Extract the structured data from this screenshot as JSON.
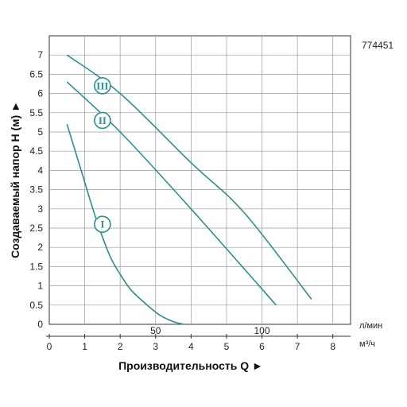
{
  "chart_data": {
    "type": "line",
    "model_code": "774451",
    "ylabel": "Создаваемый напор H (м) ►",
    "xlabel": "Производительность Q ►",
    "x_unit_secondary": "л/мин",
    "x_unit_primary": "м³/ч",
    "xlim": [
      0,
      8.5
    ],
    "ylim": [
      0,
      7.5
    ],
    "y_ticks": [
      "0",
      "0.5",
      "1",
      "1.5",
      "2",
      "2.5",
      "3",
      "3.5",
      "4",
      "4.5",
      "5",
      "5.5",
      "6",
      "6.5",
      "7"
    ],
    "y_tick_values": [
      0,
      0.5,
      1,
      1.5,
      2,
      2.5,
      3,
      3.5,
      4,
      4.5,
      5,
      5.5,
      6,
      6.5,
      7
    ],
    "x_ticks": [
      "0",
      "1",
      "2",
      "3",
      "4",
      "5",
      "6",
      "7",
      "8"
    ],
    "x_tick_values": [
      0,
      1,
      2,
      3,
      4,
      5,
      6,
      7,
      8
    ],
    "x_ticks_secondary": [
      "50",
      "100"
    ],
    "x_ticks_secondary_values": [
      3,
      6
    ],
    "grid": true,
    "line_color": "#2a8f8f",
    "series": [
      {
        "name": "I",
        "label_at": [
          1.5,
          2.6
        ],
        "x": [
          0.5,
          0.9,
          1.3,
          1.7,
          2.0,
          2.3,
          2.7,
          3.1,
          3.5,
          3.8
        ],
        "y": [
          5.2,
          4.0,
          2.8,
          1.8,
          1.3,
          0.9,
          0.55,
          0.25,
          0.07,
          0.0
        ]
      },
      {
        "name": "II",
        "label_at": [
          1.5,
          5.3
        ],
        "x": [
          0.5,
          2.0,
          4.0,
          6.4
        ],
        "y": [
          6.3,
          5.0,
          3.0,
          0.5
        ]
      },
      {
        "name": "III",
        "label_at": [
          1.5,
          6.2
        ],
        "x": [
          0.5,
          2.0,
          4.0,
          5.5,
          7.4
        ],
        "y": [
          7.0,
          6.0,
          4.2,
          2.9,
          0.65
        ]
      }
    ]
  }
}
